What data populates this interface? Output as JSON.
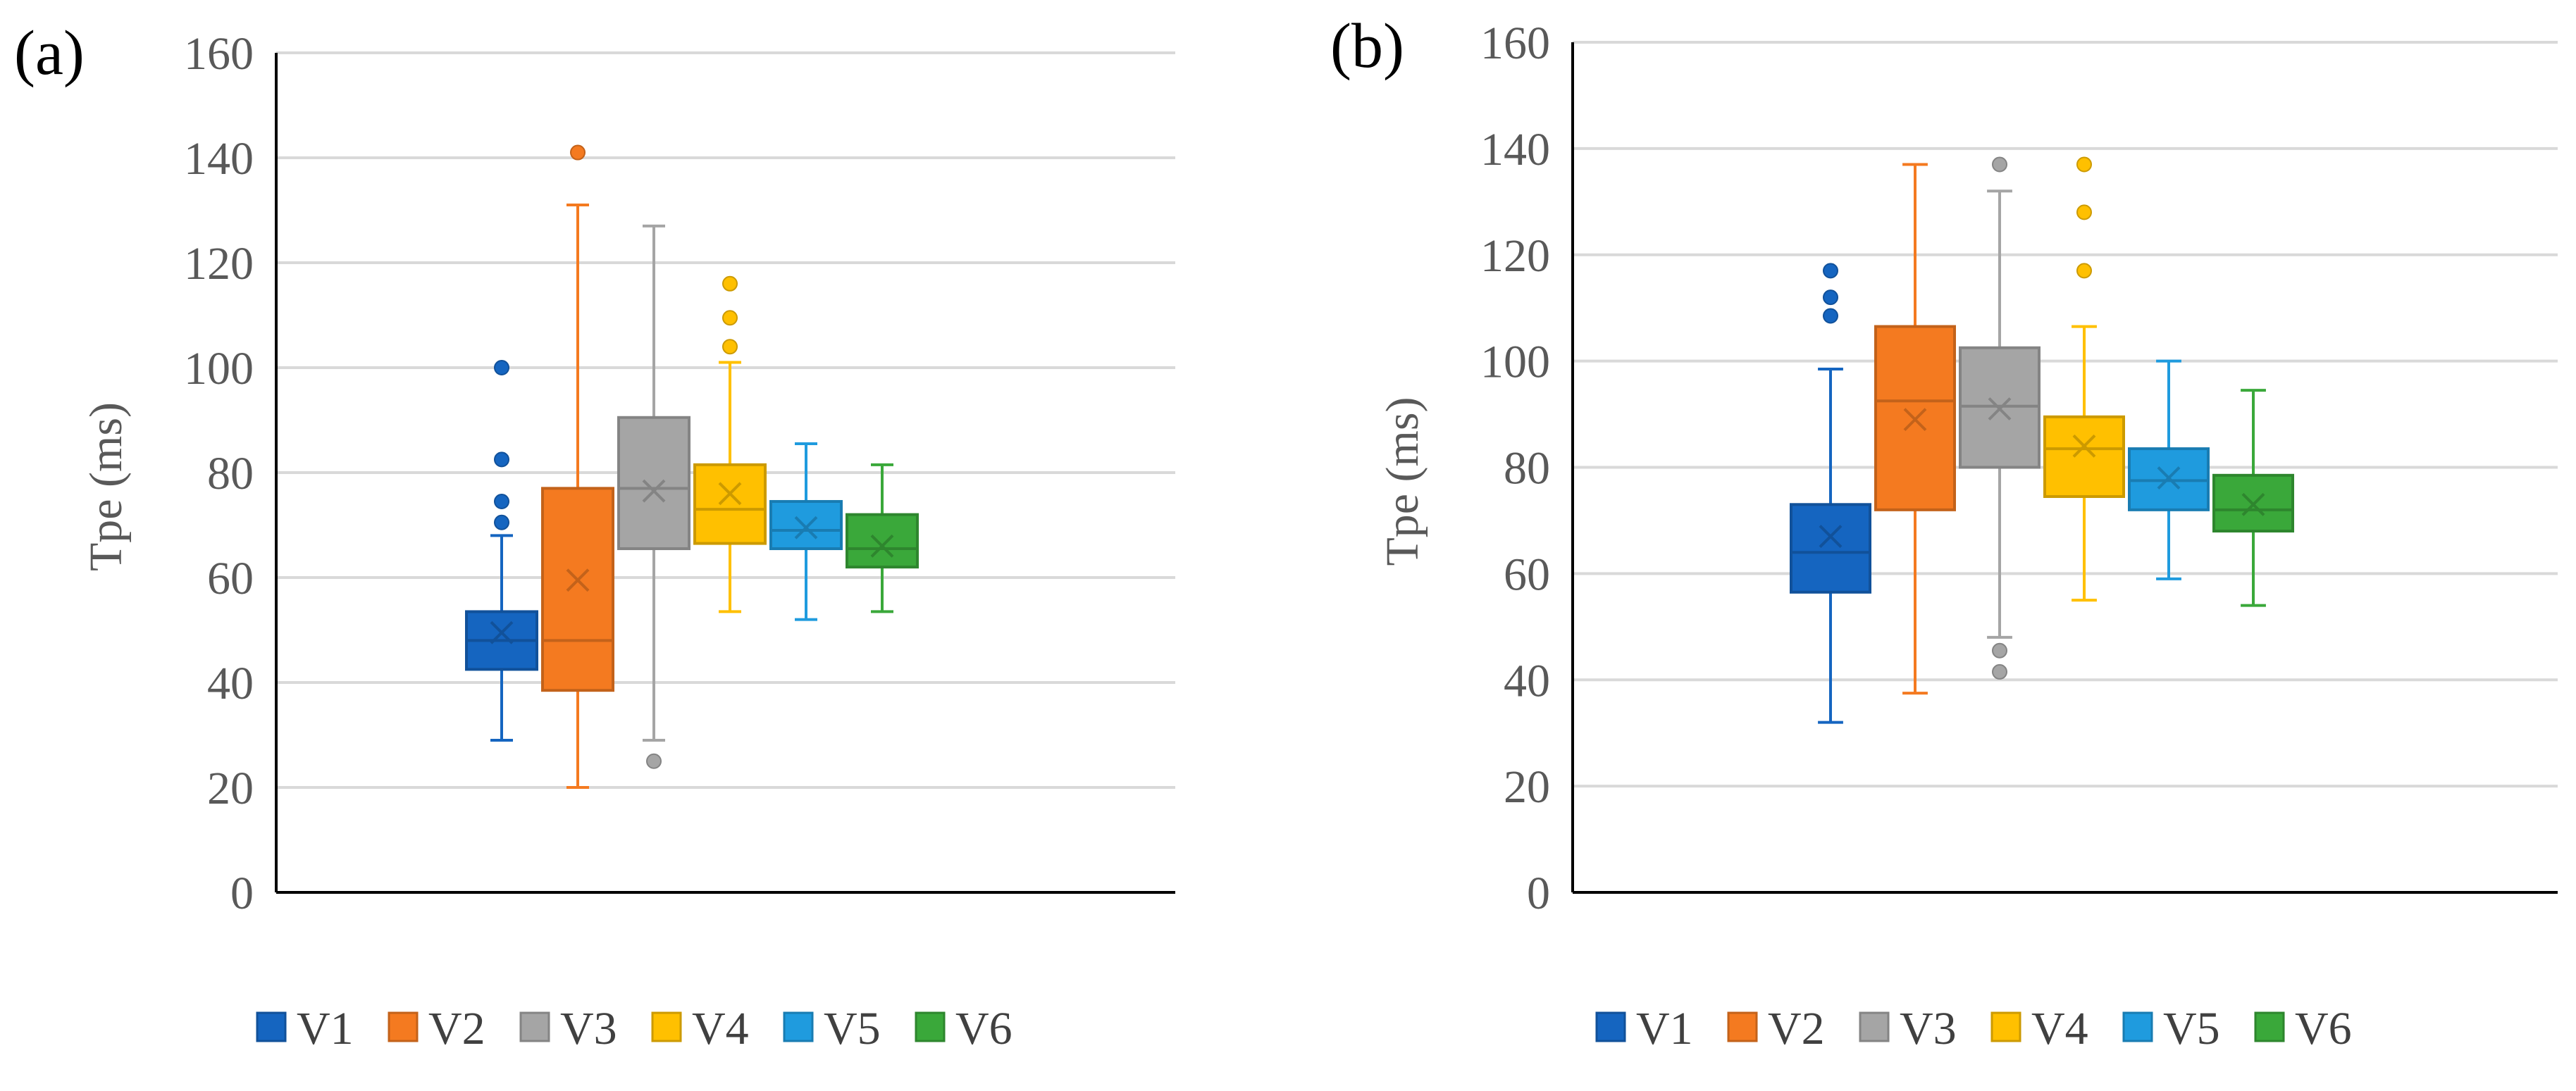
{
  "chart_data": [
    {
      "type": "box",
      "panel_label": "(a)",
      "ylabel": "Tpe (ms)",
      "ylim": [
        0,
        160
      ],
      "yticks": [
        0,
        20,
        40,
        60,
        80,
        100,
        120,
        140,
        160
      ],
      "grid": true,
      "legend_position": "bottom",
      "series": [
        {
          "name": "V1",
          "color": "#1565c0",
          "min": 29,
          "q1": 42.5,
          "median": 48,
          "q3": 53.5,
          "max": 68,
          "mean": 49.5,
          "outliers": [
            70.5,
            74.5,
            82.5,
            100
          ]
        },
        {
          "name": "V2",
          "color": "#f47a20",
          "min": 20,
          "q1": 38.5,
          "median": 48,
          "q3": 77,
          "max": 131,
          "mean": 59.5,
          "outliers": [
            141
          ]
        },
        {
          "name": "V3",
          "color": "#a5a5a5",
          "min": 29,
          "q1": 65.5,
          "median": 77,
          "q3": 90.5,
          "max": 127,
          "mean": 76.5,
          "outliers": [
            25
          ]
        },
        {
          "name": "V4",
          "color": "#ffc000",
          "min": 53.5,
          "q1": 66.5,
          "median": 73,
          "q3": 81.5,
          "max": 101,
          "mean": 76,
          "outliers": [
            104,
            109.5,
            116
          ]
        },
        {
          "name": "V5",
          "color": "#1f9bde",
          "min": 52,
          "q1": 65.5,
          "median": 69,
          "q3": 74.5,
          "max": 85.5,
          "mean": 69.5,
          "outliers": []
        },
        {
          "name": "V6",
          "color": "#3aa83a",
          "min": 53.5,
          "q1": 62,
          "median": 65.5,
          "q3": 72,
          "max": 81.5,
          "mean": 66,
          "outliers": []
        }
      ]
    },
    {
      "type": "box",
      "panel_label": "(b)",
      "ylabel": "Tpe (ms)",
      "ylim": [
        0,
        160
      ],
      "yticks": [
        0,
        20,
        40,
        60,
        80,
        100,
        120,
        140,
        160
      ],
      "grid": true,
      "legend_position": "bottom",
      "series": [
        {
          "name": "V1",
          "color": "#1565c0",
          "min": 32,
          "q1": 56.5,
          "median": 64,
          "q3": 73,
          "max": 98.5,
          "mean": 67,
          "outliers": [
            108.5,
            112,
            117
          ]
        },
        {
          "name": "V2",
          "color": "#f47a20",
          "min": 37.5,
          "q1": 72,
          "median": 92.5,
          "q3": 106.5,
          "max": 137,
          "mean": 89,
          "outliers": []
        },
        {
          "name": "V3",
          "color": "#a5a5a5",
          "min": 48,
          "q1": 80,
          "median": 91.5,
          "q3": 102.5,
          "max": 132,
          "mean": 91,
          "outliers": [
            41.5,
            45.5,
            137
          ]
        },
        {
          "name": "V4",
          "color": "#ffc000",
          "min": 55,
          "q1": 74.5,
          "median": 83.5,
          "q3": 89.5,
          "max": 106.5,
          "mean": 84,
          "outliers": [
            117,
            128,
            137
          ]
        },
        {
          "name": "V5",
          "color": "#1f9bde",
          "min": 59,
          "q1": 72,
          "median": 77.5,
          "q3": 83.5,
          "max": 100,
          "mean": 78,
          "outliers": []
        },
        {
          "name": "V6",
          "color": "#3aa83a",
          "min": 54,
          "q1": 68,
          "median": 72,
          "q3": 78.5,
          "max": 94.5,
          "mean": 73,
          "outliers": []
        }
      ]
    }
  ]
}
